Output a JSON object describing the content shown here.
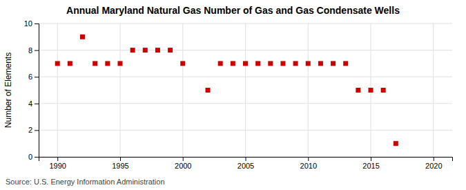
{
  "chart_data": {
    "type": "scatter",
    "title": "Annual Maryland Natural Gas Number of Gas and Gas Condensate Wells",
    "ylabel": "Number of Elements",
    "annotations": [
      "Source: U.S. Energy Information Administration"
    ],
    "x": [
      1990,
      1991,
      1992,
      1993,
      1994,
      1995,
      1996,
      1997,
      1998,
      1999,
      2000,
      2002,
      2003,
      2004,
      2005,
      2006,
      2007,
      2008,
      2009,
      2010,
      2011,
      2012,
      2013,
      2014,
      2015,
      2016,
      2017
    ],
    "values": [
      7,
      7,
      9,
      7,
      7,
      7,
      8,
      8,
      8,
      8,
      7,
      5,
      7,
      7,
      7,
      7,
      7,
      7,
      7,
      7,
      7,
      7,
      7,
      5,
      5,
      5,
      1
    ],
    "xlim": [
      1988.5,
      2021.5
    ],
    "ylim": [
      0,
      10
    ],
    "xticks": [
      1990,
      1995,
      2000,
      2005,
      2010,
      2015,
      2020
    ],
    "yticks": [
      0,
      2,
      4,
      6,
      8,
      10
    ],
    "color": "#cc0000",
    "marker": "square",
    "grid": true
  }
}
